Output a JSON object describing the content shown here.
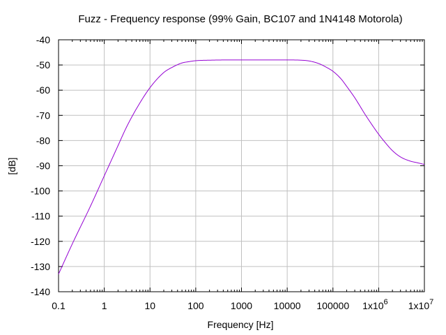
{
  "chart_data": {
    "type": "line",
    "title": "Fuzz - Frequency response (99% Gain, BC107 and 1N4148 Motorola)",
    "xlabel": "Frequency [Hz]",
    "ylabel": "[dB]",
    "x_scale": "log",
    "xlim": [
      0.1,
      10000000
    ],
    "ylim": [
      -140,
      -40
    ],
    "grid": true,
    "x_ticks": [
      {
        "value": 0.1,
        "label": "0.1",
        "exp": ""
      },
      {
        "value": 1,
        "label": "1",
        "exp": ""
      },
      {
        "value": 10,
        "label": "10",
        "exp": ""
      },
      {
        "value": 100,
        "label": "100",
        "exp": ""
      },
      {
        "value": 1000,
        "label": "1000",
        "exp": ""
      },
      {
        "value": 10000,
        "label": "10000",
        "exp": ""
      },
      {
        "value": 100000,
        "label": "100000",
        "exp": ""
      },
      {
        "value": 1000000,
        "label": "1x10",
        "exp": "6"
      },
      {
        "value": 10000000,
        "label": "1x10",
        "exp": "7"
      }
    ],
    "y_ticks": [
      {
        "value": -40,
        "label": "-40"
      },
      {
        "value": -50,
        "label": "-50"
      },
      {
        "value": -60,
        "label": "-60"
      },
      {
        "value": -70,
        "label": "-70"
      },
      {
        "value": -80,
        "label": "-80"
      },
      {
        "value": -90,
        "label": "-90"
      },
      {
        "value": -100,
        "label": "-100"
      },
      {
        "value": -110,
        "label": "-110"
      },
      {
        "value": -120,
        "label": "-120"
      },
      {
        "value": -130,
        "label": "-130"
      },
      {
        "value": -140,
        "label": "-140"
      }
    ],
    "series": [
      {
        "color": "#9400d3",
        "x": [
          0.1,
          0.2,
          0.5,
          1,
          2,
          3,
          5,
          10,
          20,
          30,
          50,
          70,
          100,
          200,
          500,
          1000,
          2000,
          5000,
          10000,
          20000,
          30000,
          50000,
          70000,
          100000,
          150000,
          200000,
          300000,
          500000,
          700000,
          1000000,
          1500000,
          2000000,
          3000000,
          5000000,
          7000000,
          10000000
        ],
        "y": [
          -133,
          -121,
          -106,
          -94,
          -82,
          -75,
          -67.5,
          -59,
          -53,
          -51,
          -49.2,
          -48.7,
          -48.3,
          -48.1,
          -48.0,
          -48.0,
          -48.0,
          -48.0,
          -48.0,
          -48.1,
          -48.4,
          -49.5,
          -50.8,
          -52.5,
          -55.5,
          -58.5,
          -63,
          -69.5,
          -73.5,
          -77.5,
          -81.5,
          -84,
          -86.5,
          -88.2,
          -88.8,
          -89.5
        ]
      }
    ]
  }
}
